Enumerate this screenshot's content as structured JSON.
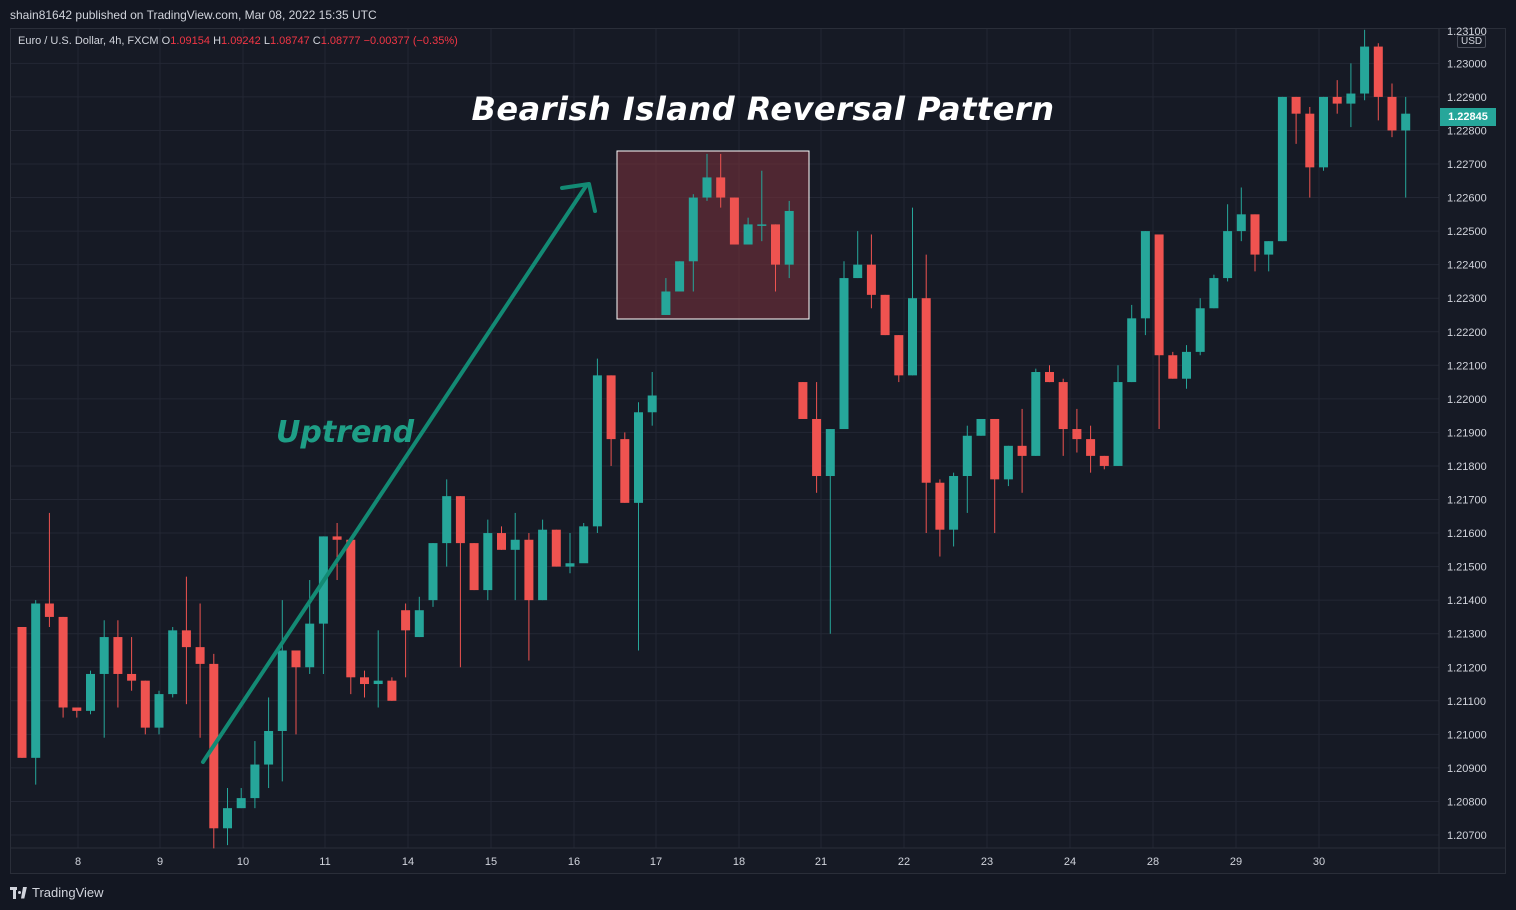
{
  "header": {
    "publish_line": "shain81642 published on TradingView.com, Mar 08, 2022 15:35 UTC"
  },
  "legend": {
    "symbol": "Euro / U.S. Dollar, 4h, FXCM",
    "open_label": "O",
    "open": "1.09154",
    "high_label": "H",
    "high": "1.09242",
    "low_label": "L",
    "low": "1.08747",
    "close_label": "C",
    "close": "1.08777",
    "change": "−0.00377 (−0.35%)"
  },
  "annotations": {
    "title": "Bearish Island Reversal Pattern",
    "uptrend_label": "Uptrend"
  },
  "price_axis": {
    "currency": "USD",
    "current_price": "1.22845",
    "top_partial": "1.23100",
    "ticks": [
      "1.23000",
      "1.22900",
      "1.22800",
      "1.22700",
      "1.22600",
      "1.22500",
      "1.22400",
      "1.22300",
      "1.22200",
      "1.22100",
      "1.22000",
      "1.21900",
      "1.21800",
      "1.21700",
      "1.21600",
      "1.21500",
      "1.21400",
      "1.21300",
      "1.21200",
      "1.21100",
      "1.21000",
      "1.20900",
      "1.20800",
      "1.20700"
    ]
  },
  "time_axis": {
    "labels": [
      "8",
      "9",
      "10",
      "11",
      "14",
      "15",
      "16",
      "17",
      "18",
      "21",
      "22",
      "23",
      "24",
      "28",
      "29",
      "30"
    ]
  },
  "footer": {
    "brand": "TradingView"
  },
  "colors": {
    "up": "#26a69a",
    "down": "#ef5350",
    "trend_line": "#138a74",
    "background": "#161a25",
    "grid": "#232734"
  },
  "chart_data": {
    "type": "candlestick",
    "instrument": "Euro / U.S. Dollar, 4h, FXCM",
    "ylim": [
      1.2065,
      1.2312
    ],
    "candles": [
      [
        1.2132,
        1.2093,
        1.2132,
        1.2093
      ],
      [
        1.2093,
        1.2139,
        1.214,
        1.2085
      ],
      [
        1.2139,
        1.2135,
        1.2166,
        1.2132
      ],
      [
        1.2135,
        1.2108,
        1.2135,
        1.2105
      ],
      [
        1.2108,
        1.2107,
        1.2108,
        1.2105
      ],
      [
        1.2107,
        1.2118,
        1.2119,
        1.2106
      ],
      [
        1.2118,
        1.2129,
        1.2134,
        1.2099
      ],
      [
        1.2129,
        1.2118,
        1.2134,
        1.2108
      ],
      [
        1.2118,
        1.2116,
        1.2129,
        1.2113
      ],
      [
        1.2116,
        1.2102,
        1.2116,
        1.21
      ],
      [
        1.2102,
        1.2112,
        1.2113,
        1.21
      ],
      [
        1.2112,
        1.2131,
        1.2132,
        1.2111
      ],
      [
        1.2131,
        1.2126,
        1.2147,
        1.2109
      ],
      [
        1.2126,
        1.2121,
        1.2139,
        1.2099
      ],
      [
        1.2121,
        1.2072,
        1.2124,
        1.2066
      ],
      [
        1.2072,
        1.2078,
        1.2084,
        1.2067
      ],
      [
        1.2078,
        1.2081,
        1.2084,
        1.2078
      ],
      [
        1.2081,
        1.2091,
        1.2098,
        1.2078
      ],
      [
        1.2091,
        1.2101,
        1.2111,
        1.2084
      ],
      [
        1.2101,
        1.2125,
        1.214,
        1.2086
      ],
      [
        1.2125,
        1.212,
        1.2125,
        1.21
      ],
      [
        1.212,
        1.2133,
        1.2146,
        1.2118
      ],
      [
        1.2133,
        1.2159,
        1.2159,
        1.2118
      ],
      [
        1.2159,
        1.2158,
        1.2163,
        1.2146
      ],
      [
        1.2158,
        1.2117,
        1.2158,
        1.2112
      ],
      [
        1.2117,
        1.2115,
        1.2119,
        1.2111
      ],
      [
        1.2115,
        1.2116,
        1.2131,
        1.2108
      ],
      [
        1.2116,
        1.211,
        1.2117,
        1.211
      ],
      [
        1.2137,
        1.2131,
        1.2139,
        1.2117
      ],
      [
        1.2129,
        1.2137,
        1.2141,
        1.2129
      ],
      [
        1.214,
        1.2157,
        1.2157,
        1.2138
      ],
      [
        1.2157,
        1.2171,
        1.2176,
        1.215
      ],
      [
        1.2171,
        1.2157,
        1.2171,
        1.212
      ],
      [
        1.2157,
        1.2143,
        1.2157,
        1.2143
      ],
      [
        1.2143,
        1.216,
        1.2164,
        1.214
      ],
      [
        1.216,
        1.2155,
        1.2162,
        1.2155
      ],
      [
        1.2155,
        1.2158,
        1.2166,
        1.214
      ],
      [
        1.2158,
        1.214,
        1.216,
        1.2122
      ],
      [
        1.214,
        1.2161,
        1.2164,
        1.214
      ],
      [
        1.2161,
        1.215,
        1.2161,
        1.215
      ],
      [
        1.215,
        1.2151,
        1.216,
        1.2148
      ],
      [
        1.2151,
        1.2162,
        1.2163,
        1.2152
      ],
      [
        1.2162,
        1.2207,
        1.2212,
        1.216
      ],
      [
        1.2207,
        1.2188,
        1.2207,
        1.218
      ],
      [
        1.2188,
        1.2169,
        1.219,
        1.2169
      ],
      [
        1.2169,
        1.2196,
        1.2199,
        1.2125
      ],
      [
        1.2196,
        1.2201,
        1.2208,
        1.2192
      ],
      [
        1.2225,
        1.2232,
        1.2236,
        1.2225
      ],
      [
        1.2232,
        1.2241,
        1.2241,
        1.2232
      ],
      [
        1.2241,
        1.226,
        1.2261,
        1.2232
      ],
      [
        1.226,
        1.2266,
        1.2273,
        1.2259
      ],
      [
        1.2266,
        1.226,
        1.2273,
        1.2257
      ],
      [
        1.226,
        1.2246,
        1.226,
        1.2246
      ],
      [
        1.2246,
        1.2252,
        1.2254,
        1.2246
      ],
      [
        1.2252,
        1.2252,
        1.2268,
        1.2247
      ],
      [
        1.2252,
        1.224,
        1.2252,
        1.2232
      ],
      [
        1.224,
        1.2256,
        1.2259,
        1.2236
      ],
      [
        1.2205,
        1.2194,
        1.2205,
        1.2194
      ],
      [
        1.2194,
        1.2177,
        1.2205,
        1.2172
      ],
      [
        1.2177,
        1.2191,
        1.2191,
        1.213
      ],
      [
        1.2191,
        1.2236,
        1.2241,
        1.2191
      ],
      [
        1.2236,
        1.224,
        1.225,
        1.2236
      ],
      [
        1.224,
        1.2231,
        1.2249,
        1.2227
      ],
      [
        1.2231,
        1.2219,
        1.2231,
        1.2219
      ],
      [
        1.2219,
        1.2207,
        1.2219,
        1.2205
      ],
      [
        1.2207,
        1.223,
        1.2257,
        1.2207
      ],
      [
        1.223,
        1.2175,
        1.2243,
        1.216
      ],
      [
        1.2175,
        1.2161,
        1.2176,
        1.2153
      ],
      [
        1.2161,
        1.2177,
        1.2178,
        1.2156
      ],
      [
        1.2177,
        1.2189,
        1.2192,
        1.2166
      ],
      [
        1.2189,
        1.2194,
        1.2194,
        1.2189
      ],
      [
        1.2194,
        1.2176,
        1.2194,
        1.216
      ],
      [
        1.2176,
        1.2186,
        1.2186,
        1.2174
      ],
      [
        1.2186,
        1.2183,
        1.2197,
        1.2172
      ],
      [
        1.2183,
        1.2208,
        1.2209,
        1.2183
      ],
      [
        1.2208,
        1.2205,
        1.221,
        1.2205
      ],
      [
        1.2205,
        1.2191,
        1.2206,
        1.2183
      ],
      [
        1.2191,
        1.2188,
        1.2197,
        1.2184
      ],
      [
        1.2188,
        1.2183,
        1.2192,
        1.2178
      ],
      [
        1.2183,
        1.218,
        1.2183,
        1.2179
      ],
      [
        1.218,
        1.2205,
        1.221,
        1.218
      ],
      [
        1.2205,
        1.2224,
        1.2228,
        1.2205
      ],
      [
        1.2224,
        1.225,
        1.225,
        1.2219
      ],
      [
        1.2249,
        1.2213,
        1.2249,
        1.2191
      ],
      [
        1.2213,
        1.2206,
        1.2214,
        1.2206
      ],
      [
        1.2206,
        1.2214,
        1.2216,
        1.2203
      ],
      [
        1.2214,
        1.2227,
        1.223,
        1.2213
      ],
      [
        1.2227,
        1.2236,
        1.2237,
        1.2227
      ],
      [
        1.2236,
        1.225,
        1.2258,
        1.2235
      ],
      [
        1.225,
        1.2255,
        1.2263,
        1.2247
      ],
      [
        1.2255,
        1.2243,
        1.2255,
        1.2238
      ],
      [
        1.2243,
        1.2247,
        1.2247,
        1.2238
      ],
      [
        1.2247,
        1.229,
        1.229,
        1.2247
      ],
      [
        1.229,
        1.2285,
        1.229,
        1.2276
      ],
      [
        1.2285,
        1.2269,
        1.2287,
        1.226
      ],
      [
        1.2269,
        1.229,
        1.229,
        1.2268
      ],
      [
        1.229,
        1.2288,
        1.2295,
        1.2285
      ],
      [
        1.2288,
        1.2291,
        1.23,
        1.2281
      ],
      [
        1.2291,
        1.2305,
        1.231,
        1.2289
      ],
      [
        1.2305,
        1.229,
        1.2306,
        1.2283
      ],
      [
        1.229,
        1.228,
        1.2294,
        1.2278
      ],
      [
        1.228,
        1.2285,
        1.229,
        1.226
      ]
    ]
  }
}
